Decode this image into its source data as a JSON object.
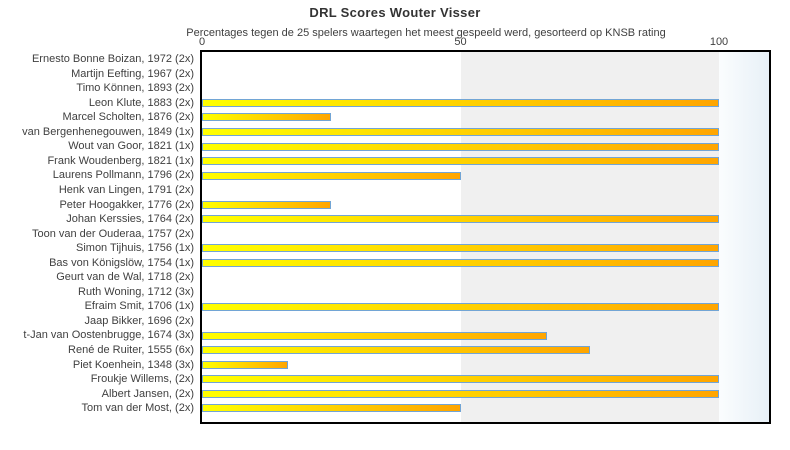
{
  "chart_data": {
    "type": "bar",
    "orientation": "horizontal",
    "title": "DRL Scores Wouter Visser",
    "subtitle": "Percentages tegen de 25 spelers waartegen het meest gespeeld werd, gesorteerd op KNSB rating",
    "x_axis": {
      "position": "top",
      "min": 0,
      "max": 100,
      "ticks": [
        0,
        50,
        100
      ]
    },
    "xlim_drawn": [
      0,
      110
    ],
    "grid": "background bands: white 0-50, light gray 50-100, pale blue beyond 100",
    "legend": "none",
    "players": [
      {
        "label": "Ernesto Bonne Boizan, 1972 (2x)",
        "value": 0
      },
      {
        "label": "Martijn Eefting, 1967 (2x)",
        "value": 0
      },
      {
        "label": "Timo Können, 1893 (2x)",
        "value": 0
      },
      {
        "label": "Leon Klute, 1883 (2x)",
        "value": 100
      },
      {
        "label": "Marcel Scholten, 1876 (2x)",
        "value": 25
      },
      {
        "label": "van Bergenhenegouwen, 1849 (1x)",
        "value": 100
      },
      {
        "label": "Wout van Goor, 1821 (1x)",
        "value": 100
      },
      {
        "label": "Frank Woudenberg, 1821 (1x)",
        "value": 100
      },
      {
        "label": "Laurens Pollmann, 1796 (2x)",
        "value": 50
      },
      {
        "label": "Henk van Lingen, 1791 (2x)",
        "value": 0
      },
      {
        "label": "Peter Hoogakker, 1776 (2x)",
        "value": 25
      },
      {
        "label": "Johan Kerssies, 1764 (2x)",
        "value": 100
      },
      {
        "label": "Toon van der Ouderaa, 1757 (2x)",
        "value": 0
      },
      {
        "label": "Simon Tijhuis, 1756 (1x)",
        "value": 100
      },
      {
        "label": "Bas von Königslöw, 1754 (1x)",
        "value": 100
      },
      {
        "label": "Geurt van de Wal, 1718 (2x)",
        "value": 0
      },
      {
        "label": "Ruth Woning, 1712 (3x)",
        "value": 0
      },
      {
        "label": "Efraim Smit, 1706 (1x)",
        "value": 100
      },
      {
        "label": "Jaap Bikker, 1696 (2x)",
        "value": 0
      },
      {
        "label": "t-Jan van Oostenbrugge, 1674 (3x)",
        "value": 66.7
      },
      {
        "label": "René de Ruiter, 1555 (6x)",
        "value": 75
      },
      {
        "label": "Piet Koenhein, 1348 (3x)",
        "value": 16.7
      },
      {
        "label": "Froukje Willems,  (2x)",
        "value": 100
      },
      {
        "label": "Albert Jansen,  (2x)",
        "value": 100
      },
      {
        "label": "Tom van der Most,  (2x)",
        "value": 50
      }
    ],
    "colors": {
      "bar_gradient_start": "#ffff00",
      "bar_gradient_end": "#ffa500",
      "bar_border": "#72a5d5",
      "band_0_50": "#ffffff",
      "band_50_100": "#f0f0f0",
      "band_over_100": "#e7f0f7",
      "plot_border": "#000000",
      "text": "#404040"
    }
  }
}
